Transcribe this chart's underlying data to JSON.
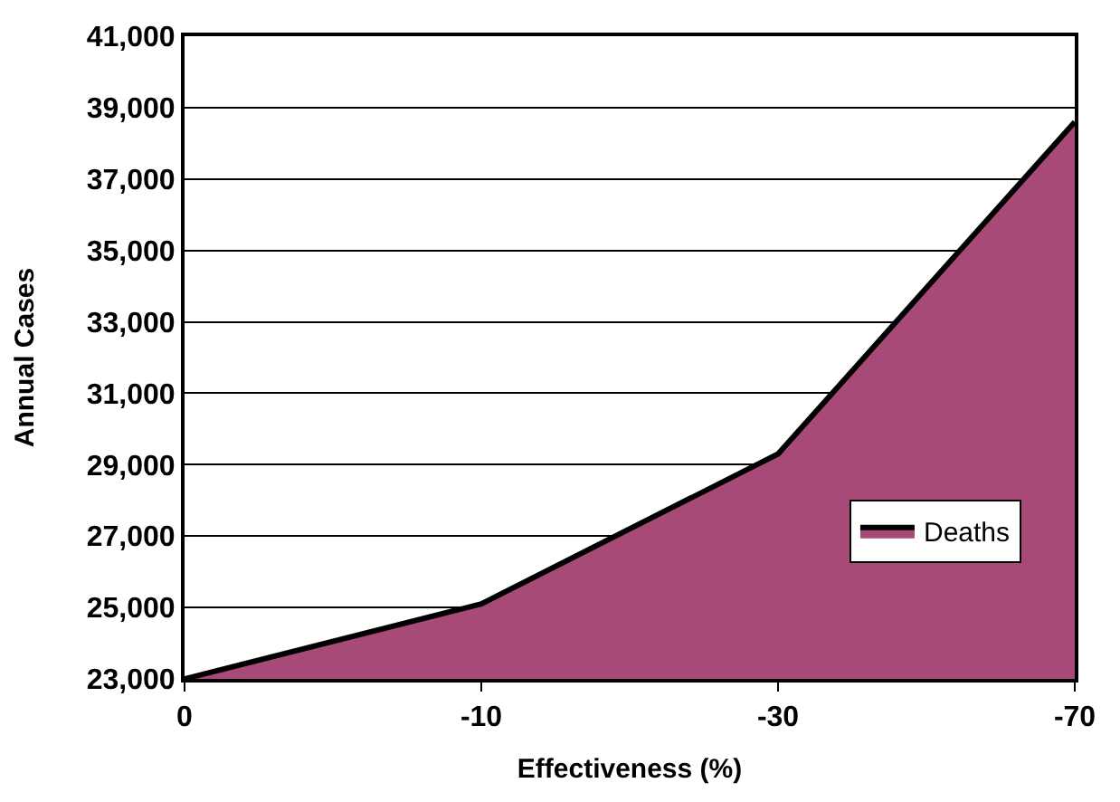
{
  "chart_data": {
    "type": "area",
    "xlabel": "Effectiveness (%)",
    "ylabel": "Annual Cases",
    "categories": [
      "0",
      "-10",
      "-30",
      "-70"
    ],
    "series": [
      {
        "name": "Deaths",
        "color": "#a84a78",
        "values": [
          23000,
          25100,
          29300,
          38600
        ]
      }
    ],
    "ylim": [
      23000,
      41000
    ],
    "yticks": [
      {
        "value": 23000,
        "label": "23,000"
      },
      {
        "value": 25000,
        "label": "25,000"
      },
      {
        "value": 27000,
        "label": "27,000"
      },
      {
        "value": 29000,
        "label": "29,000"
      },
      {
        "value": 31000,
        "label": "31,000"
      },
      {
        "value": 33000,
        "label": "33,000"
      },
      {
        "value": 35000,
        "label": "35,000"
      },
      {
        "value": 37000,
        "label": "37,000"
      },
      {
        "value": 39000,
        "label": "39,000"
      },
      {
        "value": 41000,
        "label": "41,000"
      }
    ],
    "grid": "y",
    "legend": "bottom right",
    "marker": "none"
  }
}
